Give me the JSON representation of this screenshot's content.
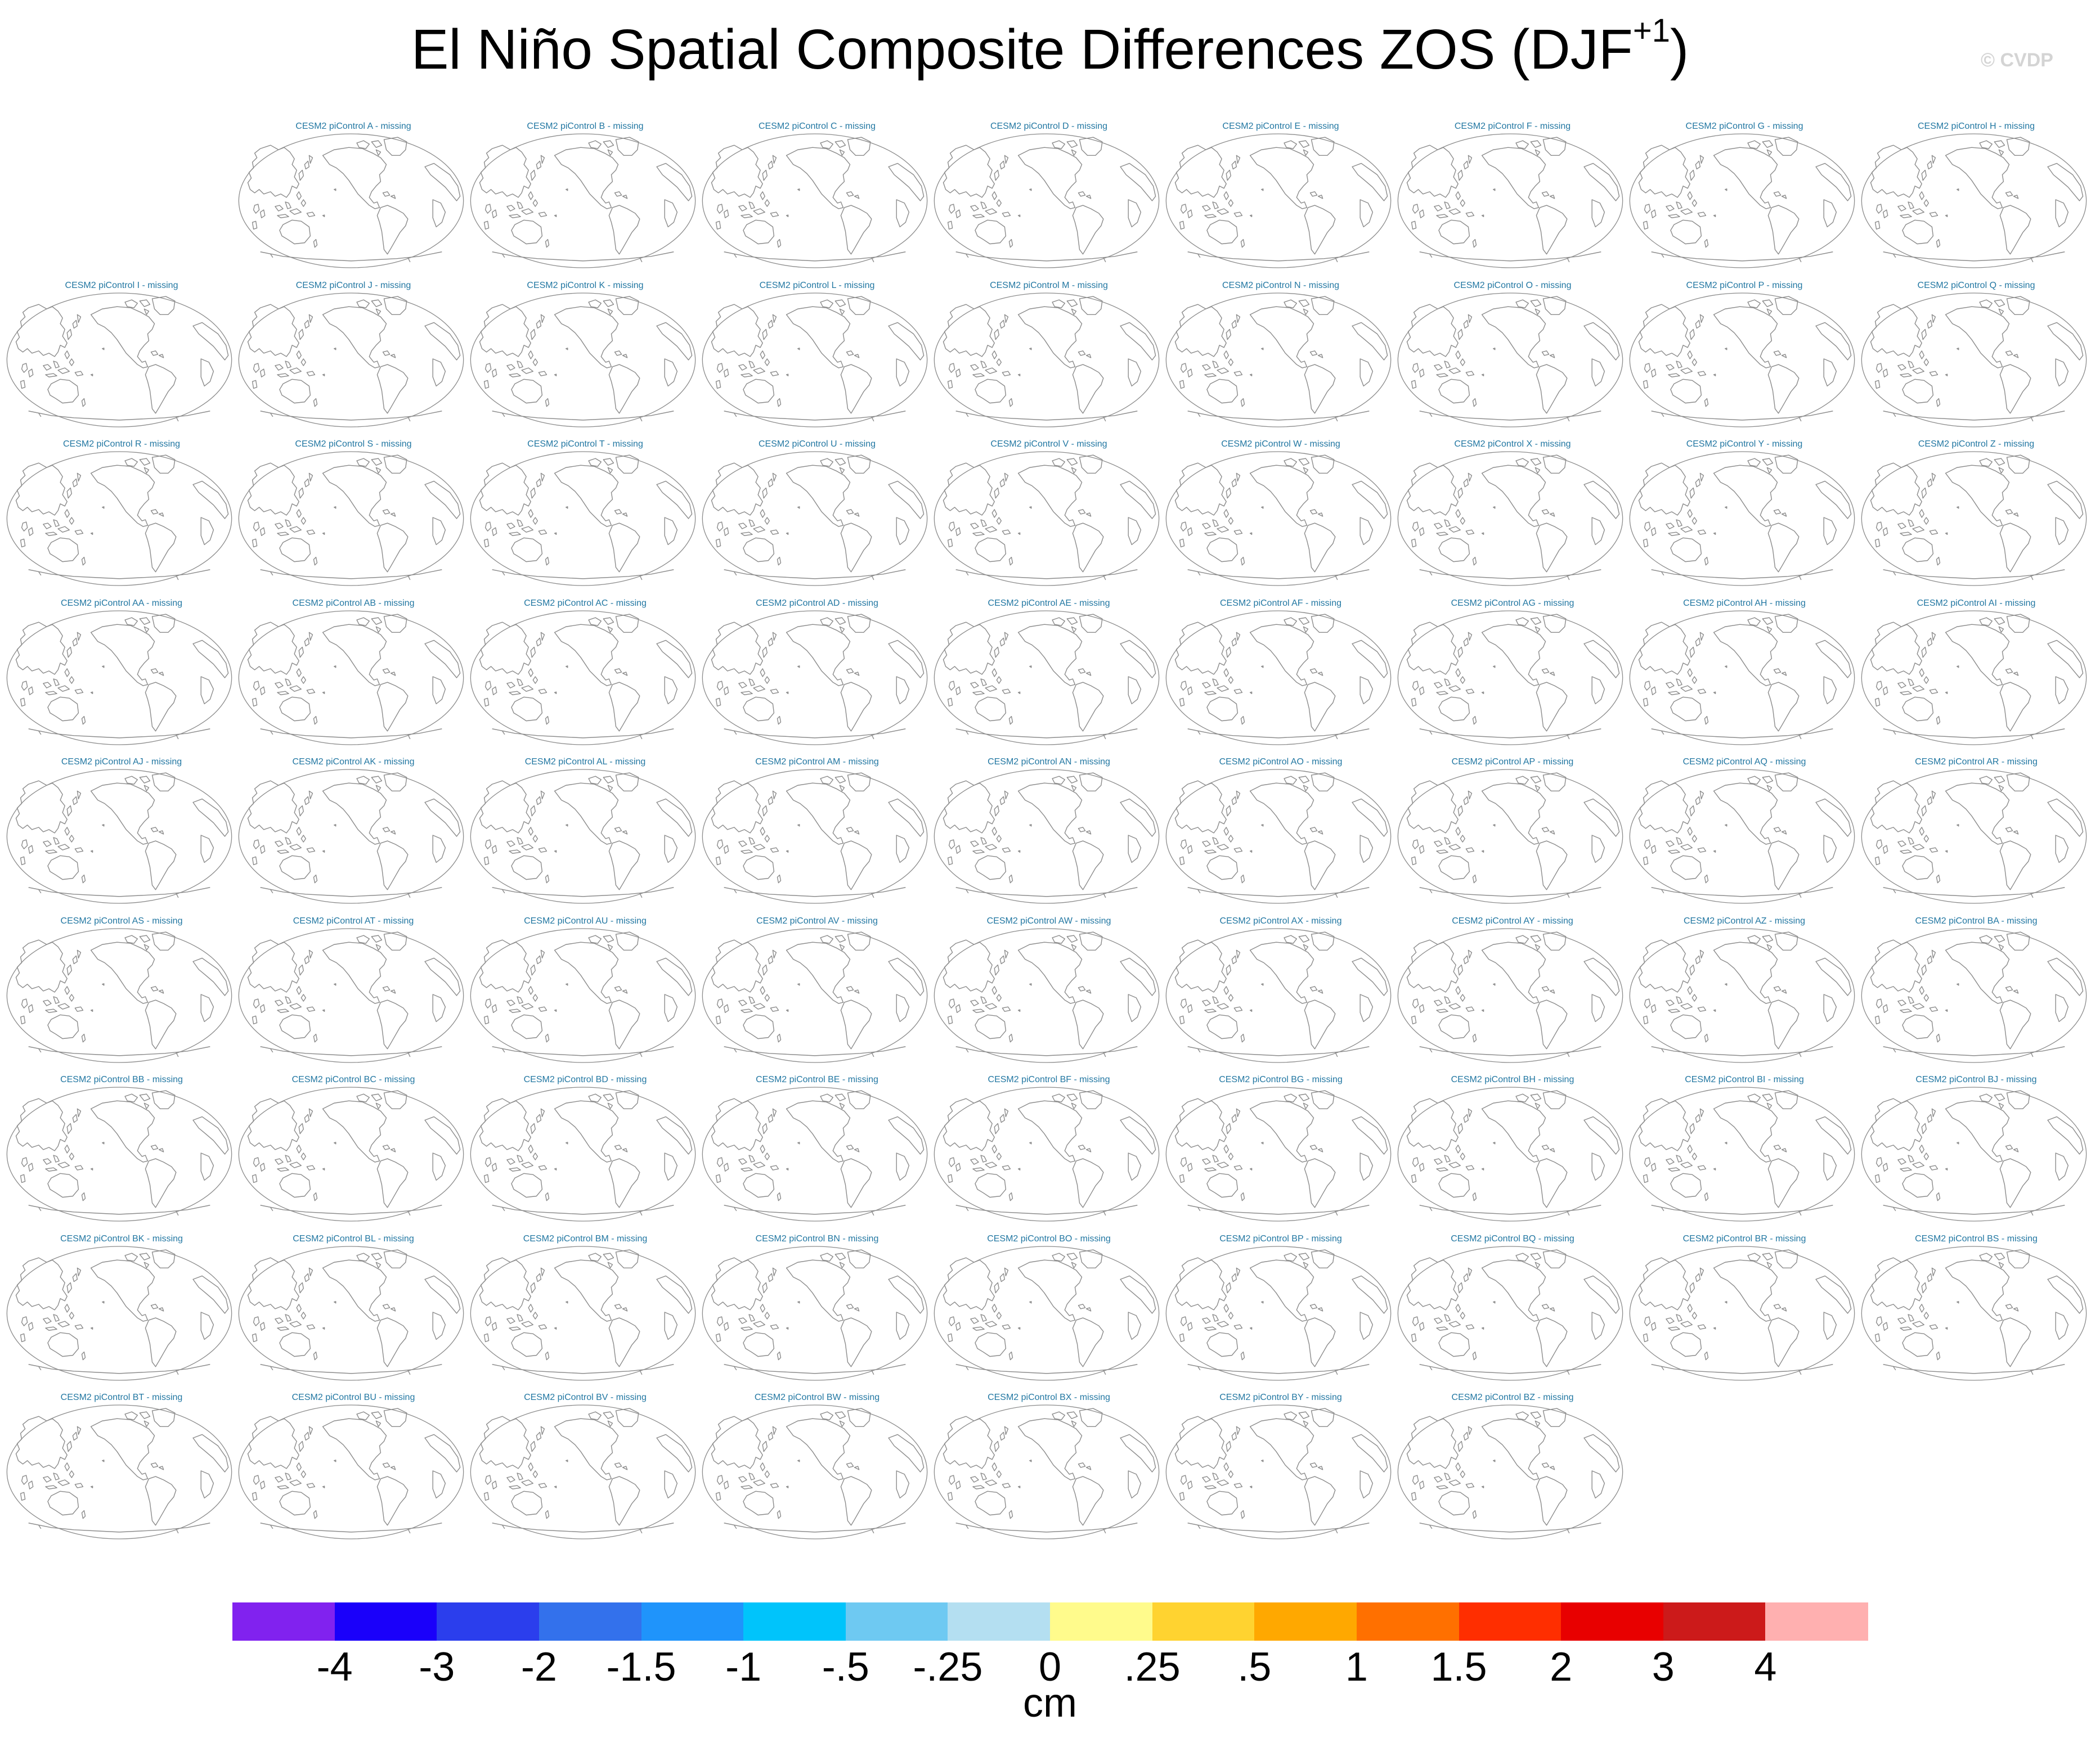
{
  "title": "El Niño Spatial Composite Differences ZOS (DJF",
  "title_sup": "+1",
  "title_close": ")",
  "watermark": "© CVDP",
  "units": "cm",
  "panel_prefix": "CESM2 piControl",
  "panel_suffix": "missing",
  "coastline_color": "#8c8c8c",
  "panel_title_color": "#2277a2",
  "rows": [
    {
      "skip_first": true,
      "labels": [
        "A",
        "B",
        "C",
        "D",
        "E",
        "F",
        "G",
        "H"
      ]
    },
    {
      "skip_first": false,
      "labels": [
        "I",
        "J",
        "K",
        "L",
        "M",
        "N",
        "O",
        "P",
        "Q"
      ]
    },
    {
      "skip_first": false,
      "labels": [
        "R",
        "S",
        "T",
        "U",
        "V",
        "W",
        "X",
        "Y",
        "Z"
      ]
    },
    {
      "skip_first": false,
      "labels": [
        "AA",
        "AB",
        "AC",
        "AD",
        "AE",
        "AF",
        "AG",
        "AH",
        "AI"
      ]
    },
    {
      "skip_first": false,
      "labels": [
        "AJ",
        "AK",
        "AL",
        "AM",
        "AN",
        "AO",
        "AP",
        "AQ",
        "AR"
      ]
    },
    {
      "skip_first": false,
      "labels": [
        "AS",
        "AT",
        "AU",
        "AV",
        "AW",
        "AX",
        "AY",
        "AZ",
        "BA"
      ]
    },
    {
      "skip_first": false,
      "labels": [
        "BB",
        "BC",
        "BD",
        "BE",
        "BF",
        "BG",
        "BH",
        "BI",
        "BJ"
      ]
    },
    {
      "skip_first": false,
      "labels": [
        "BK",
        "BL",
        "BM",
        "BN",
        "BO",
        "BP",
        "BQ",
        "BR",
        "BS"
      ]
    },
    {
      "skip_first": false,
      "labels": [
        "BT",
        "BU",
        "BV",
        "BW",
        "BX",
        "BY",
        "BZ"
      ]
    }
  ],
  "colorbar": {
    "colors": [
      "#8122ef",
      "#1a00fa",
      "#2b3eed",
      "#3371ec",
      "#1f94fb",
      "#00c4fb",
      "#6ec9f2",
      "#b4dff1",
      "#fffb8c",
      "#ffd330",
      "#ffa800",
      "#ff7000",
      "#ff2e00",
      "#e80000",
      "#cc1a1a",
      "#ffb0b0"
    ],
    "labels": [
      "-4",
      "-3",
      "-2",
      "-1.5",
      "-1",
      "-.5",
      "-.25",
      "0",
      ".25",
      ".5",
      "1",
      "1.5",
      "2",
      "3",
      "4"
    ]
  }
}
